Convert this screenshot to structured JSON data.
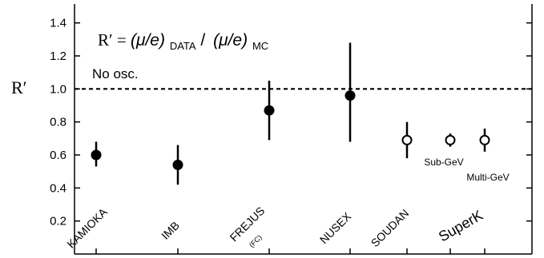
{
  "chart_data": {
    "type": "scatter",
    "ylabel": "R′",
    "ylim": [
      0,
      1.5
    ],
    "yticks": [
      0.2,
      0.4,
      0.6,
      0.8,
      1.0,
      1.2,
      1.4
    ],
    "reference_line": {
      "y": 1.0,
      "label": "No osc.",
      "style": "dashed"
    },
    "formula": {
      "lhs": "R′ = ",
      "part1": "(μ/e)",
      "sub1": "DATA",
      "sep": " /",
      "part2": "(μ/e)",
      "sub2": "MC"
    },
    "points": [
      {
        "label": "KAMIOKA",
        "sublabel": "",
        "y": 0.6,
        "err_low": 0.53,
        "err_high": 0.68,
        "filled": true
      },
      {
        "label": "IMB",
        "sublabel": "",
        "y": 0.54,
        "err_low": 0.42,
        "err_high": 0.66,
        "filled": true
      },
      {
        "label": "FREJUS",
        "sublabel": "(FC)",
        "y": 0.87,
        "err_low": 0.69,
        "err_high": 1.05,
        "filled": true
      },
      {
        "label": "NUSEX",
        "sublabel": "",
        "y": 0.96,
        "err_low": 0.68,
        "err_high": 1.28,
        "filled": true
      },
      {
        "label": "SOUDAN",
        "sublabel": "",
        "y": 0.69,
        "err_low": 0.58,
        "err_high": 0.8,
        "filled": false
      },
      {
        "label": "Sub-GeV",
        "sublabel": "",
        "y": 0.69,
        "err_low": 0.65,
        "err_high": 0.73,
        "filled": false
      },
      {
        "label": "Multi-GeV",
        "sublabel": "",
        "y": 0.69,
        "err_low": 0.62,
        "err_high": 0.76,
        "filled": false
      }
    ],
    "group_label": "SuperK"
  }
}
